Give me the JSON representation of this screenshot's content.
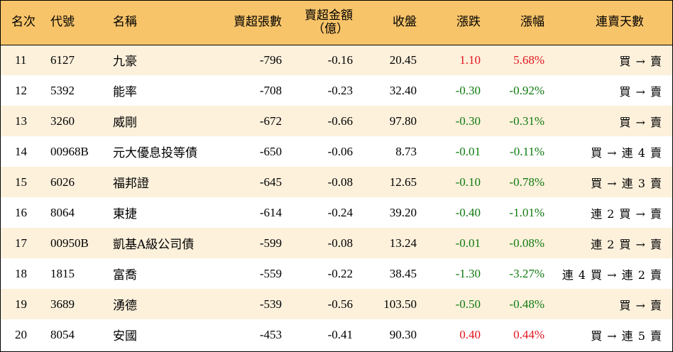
{
  "colors": {
    "header_bg": "#f8c46a",
    "odd_row_bg": "#fdf1dc",
    "up": "#e2141e",
    "down": "#0f7a0f"
  },
  "header": {
    "rank": "名次",
    "code": "代號",
    "name": "名稱",
    "net_sell_lots": "賣超張數",
    "net_sell_amount_line1": "賣超金額",
    "net_sell_amount_line2": "（億）",
    "close": "收盤",
    "change": "漲跌",
    "change_pct": "漲幅",
    "streak": "連賣天數"
  },
  "rows": [
    {
      "rank": "11",
      "code": "6127",
      "name": "九豪",
      "lots": "-796",
      "amount": "-0.16",
      "close": "20.45",
      "change": "1.10",
      "pct": "5.68%",
      "dir": "up",
      "streak": "買 → 賣"
    },
    {
      "rank": "12",
      "code": "5392",
      "name": "能率",
      "lots": "-708",
      "amount": "-0.23",
      "close": "32.40",
      "change": "-0.30",
      "pct": "-0.92%",
      "dir": "down",
      "streak": "買 → 賣"
    },
    {
      "rank": "13",
      "code": "3260",
      "name": "威剛",
      "lots": "-672",
      "amount": "-0.66",
      "close": "97.80",
      "change": "-0.30",
      "pct": "-0.31%",
      "dir": "down",
      "streak": "買 → 賣"
    },
    {
      "rank": "14",
      "code": "00968B",
      "name": "元大優息投等債",
      "lots": "-650",
      "amount": "-0.06",
      "close": "8.73",
      "change": "-0.01",
      "pct": "-0.11%",
      "dir": "down",
      "streak": "買 → 連 4 賣"
    },
    {
      "rank": "15",
      "code": "6026",
      "name": "福邦證",
      "lots": "-645",
      "amount": "-0.08",
      "close": "12.65",
      "change": "-0.10",
      "pct": "-0.78%",
      "dir": "down",
      "streak": "買 → 連 3 賣"
    },
    {
      "rank": "16",
      "code": "8064",
      "name": "東捷",
      "lots": "-614",
      "amount": "-0.24",
      "close": "39.20",
      "change": "-0.40",
      "pct": "-1.01%",
      "dir": "down",
      "streak": "連 2 買 → 賣"
    },
    {
      "rank": "17",
      "code": "00950B",
      "name": "凱基A級公司債",
      "lots": "-599",
      "amount": "-0.08",
      "close": "13.24",
      "change": "-0.01",
      "pct": "-0.08%",
      "dir": "down",
      "streak": "連 2 買 → 賣"
    },
    {
      "rank": "18",
      "code": "1815",
      "name": "富喬",
      "lots": "-559",
      "amount": "-0.22",
      "close": "38.45",
      "change": "-1.30",
      "pct": "-3.27%",
      "dir": "down",
      "streak": "連 4 買 → 連 2 賣"
    },
    {
      "rank": "19",
      "code": "3689",
      "name": "湧德",
      "lots": "-539",
      "amount": "-0.56",
      "close": "103.50",
      "change": "-0.50",
      "pct": "-0.48%",
      "dir": "down",
      "streak": "買 → 賣"
    },
    {
      "rank": "20",
      "code": "8054",
      "name": "安國",
      "lots": "-453",
      "amount": "-0.41",
      "close": "90.30",
      "change": "0.40",
      "pct": "0.44%",
      "dir": "up",
      "streak": "買 → 連 5 賣"
    }
  ]
}
